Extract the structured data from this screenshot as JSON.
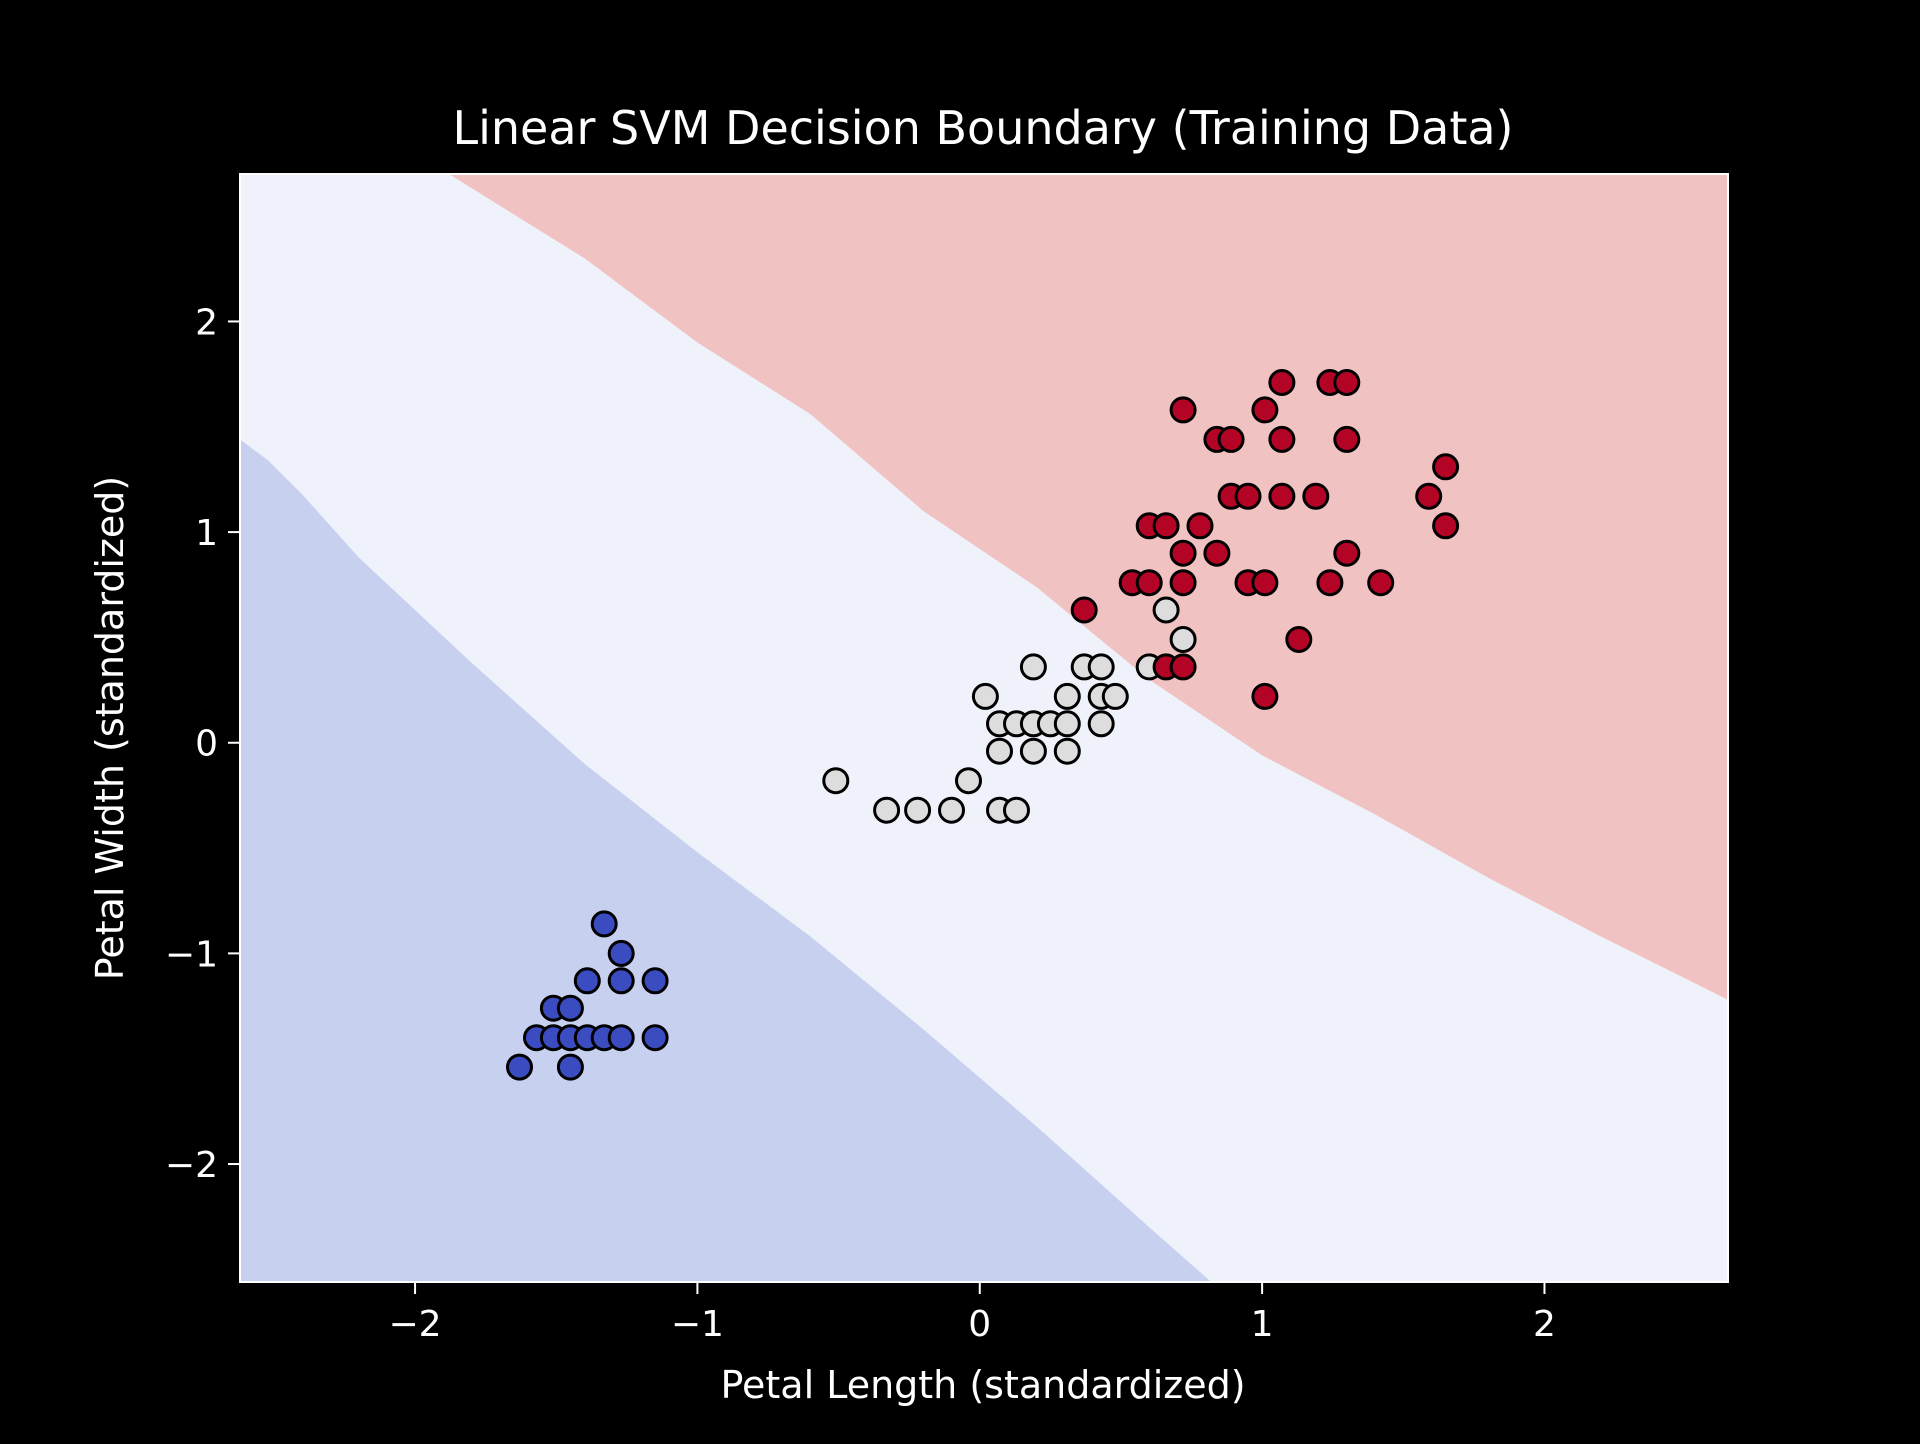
{
  "chart_data": {
    "type": "scatter",
    "title": "Linear SVM Decision Boundary (Training Data)",
    "xlabel": "Petal Length (standardized)",
    "ylabel": "Petal Width (standardized)",
    "xlim": [
      -2.62,
      2.65
    ],
    "ylim": [
      -2.56,
      2.7
    ],
    "x_ticks": [
      -2,
      -1,
      0,
      1,
      2
    ],
    "x_tick_labels": [
      "−2",
      "−1",
      "0",
      "1",
      "2"
    ],
    "y_ticks": [
      -2,
      -1,
      0,
      1,
      2
    ],
    "y_tick_labels": [
      "−2",
      "−1",
      "0",
      "1",
      "2"
    ],
    "grid": false,
    "background_color": "#000000",
    "text_color": "#ffffff",
    "decision_regions": [
      {
        "class_index": 0,
        "color": "#c8d0f0",
        "polygon": [
          [
            -2.62,
            1.44
          ],
          [
            -2.52,
            1.34
          ],
          [
            -2.4,
            1.18
          ],
          [
            -2.2,
            0.88
          ],
          [
            -1.8,
            0.38
          ],
          [
            -1.4,
            -0.1
          ],
          [
            -1.0,
            -0.52
          ],
          [
            -0.6,
            -0.92
          ],
          [
            -0.2,
            -1.36
          ],
          [
            0.2,
            -1.82
          ],
          [
            0.6,
            -2.3
          ],
          [
            0.82,
            -2.56
          ],
          [
            -2.62,
            -2.56
          ]
        ]
      },
      {
        "class_index": 1,
        "color": "#eff2fa",
        "polygon": [
          [
            -2.62,
            2.7
          ],
          [
            -1.88,
            2.7
          ],
          [
            -2.62,
            2.7
          ]
        ]
      },
      {
        "class_index": 2,
        "color": "#f0c2c2",
        "polygon": [
          [
            -1.88,
            2.7
          ],
          [
            2.65,
            2.7
          ],
          [
            2.65,
            -1.22
          ],
          [
            2.2,
            -0.92
          ],
          [
            1.8,
            -0.64
          ],
          [
            1.4,
            -0.34
          ],
          [
            1.0,
            -0.06
          ],
          [
            0.6,
            0.3
          ],
          [
            0.2,
            0.74
          ],
          [
            -0.2,
            1.1
          ],
          [
            -0.6,
            1.56
          ],
          [
            -1.0,
            1.9
          ],
          [
            -1.4,
            2.3
          ],
          [
            -1.88,
            2.7
          ]
        ]
      }
    ],
    "series": [
      {
        "class_index": 0,
        "color": "#3b4cc0",
        "points": [
          [
            -1.33,
            -0.86
          ],
          [
            -1.27,
            -1.0
          ],
          [
            -1.39,
            -1.13
          ],
          [
            -1.27,
            -1.13
          ],
          [
            -1.15,
            -1.13
          ],
          [
            -1.51,
            -1.26
          ],
          [
            -1.45,
            -1.26
          ],
          [
            -1.57,
            -1.4
          ],
          [
            -1.51,
            -1.4
          ],
          [
            -1.45,
            -1.4
          ],
          [
            -1.39,
            -1.4
          ],
          [
            -1.33,
            -1.4
          ],
          [
            -1.27,
            -1.4
          ],
          [
            -1.15,
            -1.4
          ],
          [
            -1.63,
            -1.54
          ],
          [
            -1.45,
            -1.54
          ]
        ]
      },
      {
        "class_index": 1,
        "color": "#dddddd",
        "points": [
          [
            -0.51,
            -0.18
          ],
          [
            -0.33,
            -0.32
          ],
          [
            -0.22,
            -0.32
          ],
          [
            -0.1,
            -0.32
          ],
          [
            0.07,
            -0.32
          ],
          [
            0.13,
            -0.32
          ],
          [
            -0.04,
            -0.18
          ],
          [
            0.07,
            -0.04
          ],
          [
            0.19,
            -0.04
          ],
          [
            0.31,
            -0.04
          ],
          [
            0.07,
            0.09
          ],
          [
            0.13,
            0.09
          ],
          [
            0.19,
            0.09
          ],
          [
            0.25,
            0.09
          ],
          [
            0.31,
            0.09
          ],
          [
            0.43,
            0.09
          ],
          [
            0.02,
            0.22
          ],
          [
            0.31,
            0.22
          ],
          [
            0.43,
            0.22
          ],
          [
            0.48,
            0.22
          ],
          [
            0.19,
            0.36
          ],
          [
            0.37,
            0.36
          ],
          [
            0.43,
            0.36
          ],
          [
            0.6,
            0.36
          ],
          [
            0.66,
            0.63
          ],
          [
            0.72,
            0.49
          ]
        ]
      },
      {
        "class_index": 2,
        "color": "#b40426",
        "points": [
          [
            0.37,
            0.63
          ],
          [
            0.66,
            0.36
          ],
          [
            0.72,
            0.36
          ],
          [
            1.01,
            0.22
          ],
          [
            1.13,
            0.49
          ],
          [
            0.54,
            0.76
          ],
          [
            0.6,
            0.76
          ],
          [
            0.72,
            0.76
          ],
          [
            0.95,
            0.76
          ],
          [
            1.01,
            0.76
          ],
          [
            1.24,
            0.76
          ],
          [
            1.42,
            0.76
          ],
          [
            0.72,
            0.9
          ],
          [
            0.84,
            0.9
          ],
          [
            1.3,
            0.9
          ],
          [
            0.6,
            1.03
          ],
          [
            0.66,
            1.03
          ],
          [
            0.78,
            1.03
          ],
          [
            0.89,
            1.17
          ],
          [
            0.95,
            1.17
          ],
          [
            1.07,
            1.17
          ],
          [
            1.19,
            1.17
          ],
          [
            1.59,
            1.17
          ],
          [
            1.65,
            1.03
          ],
          [
            1.65,
            1.31
          ],
          [
            0.84,
            1.44
          ],
          [
            0.89,
            1.44
          ],
          [
            1.07,
            1.44
          ],
          [
            1.3,
            1.44
          ],
          [
            0.72,
            1.58
          ],
          [
            1.01,
            1.58
          ],
          [
            1.07,
            1.71
          ],
          [
            1.24,
            1.71
          ],
          [
            1.3,
            1.71
          ]
        ]
      }
    ]
  }
}
